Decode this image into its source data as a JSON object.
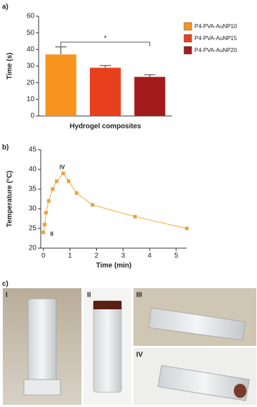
{
  "chart_data": [
    {
      "type": "bar",
      "panel_label": "a)",
      "y_label": "Time (s)",
      "x_label": "Hydrogel composites",
      "categories": [
        null,
        null,
        null
      ],
      "values": [
        37,
        29,
        23.5
      ],
      "errors": [
        4.5,
        1.3,
        1.3
      ],
      "colors": [
        "#f7941d",
        "#e8401c",
        "#a31b1b"
      ],
      "legend": [
        "P4-PVA-AuNP10",
        "P4-PVA-AuNP15",
        "P4-PVA-AuNP20"
      ],
      "significance": "*",
      "ylim": [
        0,
        60
      ],
      "yticks": [
        0,
        10,
        20,
        30,
        40,
        50,
        60
      ]
    },
    {
      "type": "line",
      "panel_label": "b)",
      "y_label": "Temperature (°C)",
      "x_label": "Time (min)",
      "x": [
        0,
        0.05,
        0.1,
        0.2,
        0.35,
        0.5,
        0.75,
        0.95,
        1.25,
        1.85,
        3.45,
        5.4
      ],
      "values": [
        24,
        26,
        29,
        32,
        35,
        37,
        39,
        37,
        34,
        31,
        28,
        25
      ],
      "color": "#f5b55a",
      "marker_color": "#e8a23c",
      "annotations": [
        {
          "text": "II",
          "x": 0.1,
          "y": 23.5
        },
        {
          "text": "IV",
          "x": 0.45,
          "y": 40.5
        }
      ],
      "xlim": [
        -0.1,
        5.4
      ],
      "xticks": [
        0,
        1,
        2,
        3,
        4,
        5
      ],
      "ylim": [
        20,
        45
      ],
      "yticks": [
        20,
        25,
        30,
        35,
        40,
        45
      ]
    }
  ],
  "panel_c": {
    "label": "c)",
    "photos": [
      "I",
      "II",
      "III",
      "IV"
    ]
  }
}
